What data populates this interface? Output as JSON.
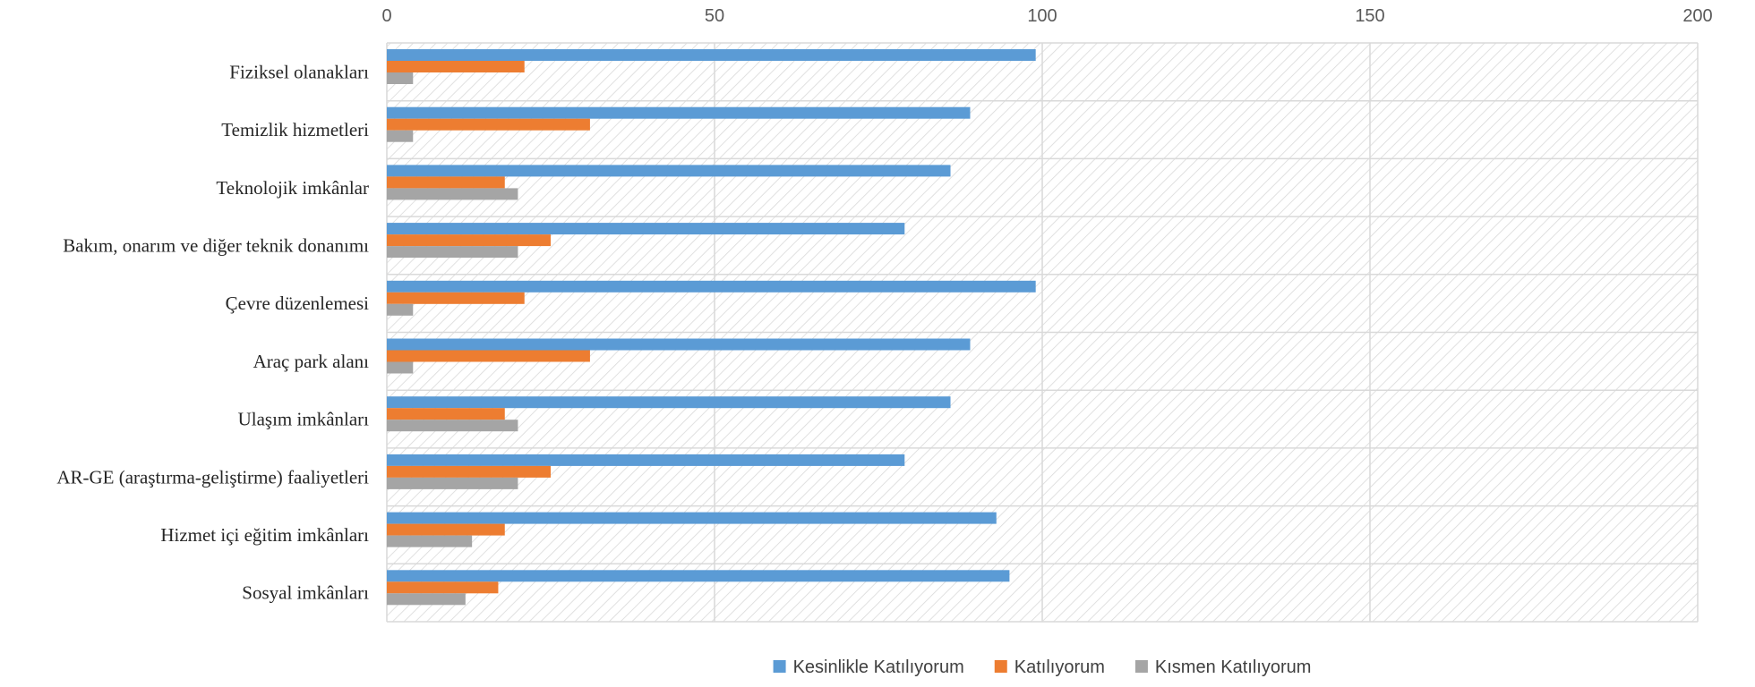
{
  "chart_data": {
    "type": "bar",
    "orientation": "horizontal",
    "title": "",
    "xlabel": "",
    "ylabel": "",
    "xlim": [
      0,
      200
    ],
    "xticks": [
      "0",
      "50",
      "100",
      "150",
      "200"
    ],
    "x_axis_position": "top",
    "grid": true,
    "plot_background": "diagonal-hatch",
    "legend_position": "bottom",
    "categories": [
      "Fiziksel olanakları",
      "Temizlik hizmetleri",
      "Teknolojik imkânlar",
      "Bakım, onarım ve diğer teknik donanımı",
      "Çevre düzenlemesi",
      "Araç park alanı",
      "Ulaşım imkânları",
      "AR-GE (araştırma-geliştirme) faaliyetleri",
      "Hizmet içi eğitim imkânları",
      "Sosyal imkânları"
    ],
    "series": [
      {
        "name": "Kesinlikle Katılıyorum",
        "color": "#5b9bd5",
        "values": [
          99,
          89,
          86,
          79,
          99,
          89,
          86,
          79,
          93,
          95
        ]
      },
      {
        "name": "Katılıyorum",
        "color": "#ed7d31",
        "values": [
          21,
          31,
          18,
          25,
          21,
          31,
          18,
          25,
          18,
          17
        ]
      },
      {
        "name": "Kısmen Katılıyorum",
        "color": "#a5a5a5",
        "values": [
          4,
          4,
          20,
          20,
          4,
          4,
          20,
          20,
          13,
          12
        ]
      }
    ]
  }
}
